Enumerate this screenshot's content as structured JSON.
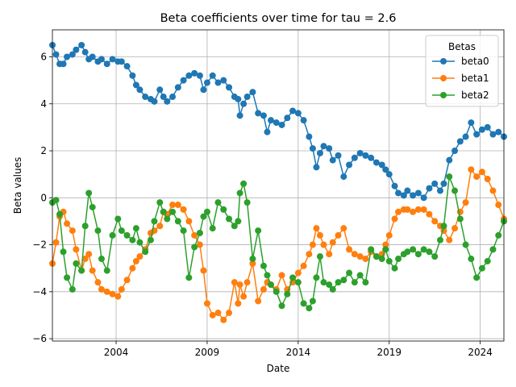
{
  "chart_data": {
    "type": "line",
    "title": "Beta coefficients over time for tau = 2.6",
    "xlabel": "Date",
    "ylabel": "Beta values",
    "xlim": [
      2000.5,
      2025.3
    ],
    "ylim": [
      -6.1,
      7.15
    ],
    "x_ticks": [
      2004,
      2009,
      2014,
      2019,
      2024
    ],
    "y_ticks": [
      -6,
      -4,
      -2,
      0,
      2,
      4,
      6
    ],
    "grid": true,
    "legend": {
      "title": "Betas",
      "position": "top-right"
    },
    "marker": "circle",
    "series": [
      {
        "name": "beta0",
        "color": "#1f77b4",
        "points": [
          [
            2000.5,
            6.5
          ],
          [
            2000.7,
            6.1
          ],
          [
            2000.9,
            5.7
          ],
          [
            2001.1,
            5.7
          ],
          [
            2001.3,
            6.0
          ],
          [
            2001.6,
            6.1
          ],
          [
            2001.8,
            6.3
          ],
          [
            2002.1,
            6.5
          ],
          [
            2002.3,
            6.2
          ],
          [
            2002.5,
            5.9
          ],
          [
            2002.7,
            6.0
          ],
          [
            2003.0,
            5.8
          ],
          [
            2003.2,
            5.9
          ],
          [
            2003.5,
            5.7
          ],
          [
            2003.8,
            5.9
          ],
          [
            2004.1,
            5.8
          ],
          [
            2004.3,
            5.8
          ],
          [
            2004.6,
            5.6
          ],
          [
            2004.9,
            5.2
          ],
          [
            2005.1,
            4.8
          ],
          [
            2005.3,
            4.6
          ],
          [
            2005.6,
            4.3
          ],
          [
            2005.9,
            4.2
          ],
          [
            2006.1,
            4.1
          ],
          [
            2006.4,
            4.6
          ],
          [
            2006.6,
            4.3
          ],
          [
            2006.8,
            4.1
          ],
          [
            2007.1,
            4.3
          ],
          [
            2007.4,
            4.7
          ],
          [
            2007.7,
            5.0
          ],
          [
            2008.0,
            5.2
          ],
          [
            2008.3,
            5.3
          ],
          [
            2008.6,
            5.2
          ],
          [
            2008.8,
            4.6
          ],
          [
            2009.0,
            4.9
          ],
          [
            2009.3,
            5.2
          ],
          [
            2009.6,
            4.9
          ],
          [
            2009.9,
            5.0
          ],
          [
            2010.2,
            4.7
          ],
          [
            2010.5,
            4.3
          ],
          [
            2010.7,
            4.2
          ],
          [
            2010.8,
            3.5
          ],
          [
            2011.0,
            4.0
          ],
          [
            2011.2,
            4.3
          ],
          [
            2011.5,
            4.5
          ],
          [
            2011.8,
            3.6
          ],
          [
            2012.1,
            3.5
          ],
          [
            2012.3,
            2.8
          ],
          [
            2012.5,
            3.3
          ],
          [
            2012.8,
            3.2
          ],
          [
            2013.1,
            3.1
          ],
          [
            2013.4,
            3.4
          ],
          [
            2013.7,
            3.7
          ],
          [
            2014.0,
            3.6
          ],
          [
            2014.3,
            3.3
          ],
          [
            2014.6,
            2.6
          ],
          [
            2014.8,
            2.1
          ],
          [
            2015.0,
            1.3
          ],
          [
            2015.2,
            1.9
          ],
          [
            2015.4,
            2.2
          ],
          [
            2015.7,
            2.1
          ],
          [
            2015.9,
            1.6
          ],
          [
            2016.2,
            1.8
          ],
          [
            2016.5,
            0.9
          ],
          [
            2016.8,
            1.4
          ],
          [
            2017.1,
            1.7
          ],
          [
            2017.4,
            1.9
          ],
          [
            2017.7,
            1.8
          ],
          [
            2018.0,
            1.7
          ],
          [
            2018.3,
            1.5
          ],
          [
            2018.6,
            1.4
          ],
          [
            2018.8,
            1.2
          ],
          [
            2019.0,
            1.0
          ],
          [
            2019.3,
            0.5
          ],
          [
            2019.5,
            0.2
          ],
          [
            2019.8,
            0.1
          ],
          [
            2020.0,
            0.3
          ],
          [
            2020.3,
            0.1
          ],
          [
            2020.6,
            0.2
          ],
          [
            2020.9,
            0.0
          ],
          [
            2021.2,
            0.4
          ],
          [
            2021.5,
            0.6
          ],
          [
            2021.8,
            0.3
          ],
          [
            2022.0,
            0.6
          ],
          [
            2022.3,
            1.6
          ],
          [
            2022.6,
            2.0
          ],
          [
            2022.9,
            2.4
          ],
          [
            2023.2,
            2.6
          ],
          [
            2023.5,
            3.2
          ],
          [
            2023.8,
            2.7
          ],
          [
            2024.1,
            2.9
          ],
          [
            2024.4,
            3.0
          ],
          [
            2024.7,
            2.7
          ],
          [
            2025.0,
            2.8
          ],
          [
            2025.3,
            2.6
          ]
        ]
      },
      {
        "name": "beta1",
        "color": "#ff7f0e",
        "points": [
          [
            2000.5,
            -2.8
          ],
          [
            2000.7,
            -1.9
          ],
          [
            2000.9,
            -0.8
          ],
          [
            2001.1,
            -0.6
          ],
          [
            2001.3,
            -1.1
          ],
          [
            2001.6,
            -1.4
          ],
          [
            2001.8,
            -2.2
          ],
          [
            2002.1,
            -3.1
          ],
          [
            2002.3,
            -2.6
          ],
          [
            2002.5,
            -2.4
          ],
          [
            2002.7,
            -3.1
          ],
          [
            2003.0,
            -3.6
          ],
          [
            2003.2,
            -3.9
          ],
          [
            2003.5,
            -4.0
          ],
          [
            2003.8,
            -4.1
          ],
          [
            2004.1,
            -4.2
          ],
          [
            2004.3,
            -3.9
          ],
          [
            2004.6,
            -3.5
          ],
          [
            2004.9,
            -3.0
          ],
          [
            2005.1,
            -2.7
          ],
          [
            2005.3,
            -2.5
          ],
          [
            2005.6,
            -2.2
          ],
          [
            2005.9,
            -1.5
          ],
          [
            2006.1,
            -1.4
          ],
          [
            2006.4,
            -1.2
          ],
          [
            2006.6,
            -0.6
          ],
          [
            2006.8,
            -0.7
          ],
          [
            2007.1,
            -0.3
          ],
          [
            2007.4,
            -0.3
          ],
          [
            2007.7,
            -0.5
          ],
          [
            2008.0,
            -1.0
          ],
          [
            2008.3,
            -1.6
          ],
          [
            2008.6,
            -2.0
          ],
          [
            2008.8,
            -3.1
          ],
          [
            2009.0,
            -4.5
          ],
          [
            2009.3,
            -5.0
          ],
          [
            2009.6,
            -4.9
          ],
          [
            2009.9,
            -5.2
          ],
          [
            2010.2,
            -4.9
          ],
          [
            2010.5,
            -3.6
          ],
          [
            2010.7,
            -4.5
          ],
          [
            2010.8,
            -3.7
          ],
          [
            2011.0,
            -4.2
          ],
          [
            2011.2,
            -3.6
          ],
          [
            2011.5,
            -2.8
          ],
          [
            2011.8,
            -4.4
          ],
          [
            2012.1,
            -3.9
          ],
          [
            2012.3,
            -3.6
          ],
          [
            2012.5,
            -3.7
          ],
          [
            2012.8,
            -3.9
          ],
          [
            2013.1,
            -3.3
          ],
          [
            2013.4,
            -3.9
          ],
          [
            2013.7,
            -3.6
          ],
          [
            2014.0,
            -3.2
          ],
          [
            2014.3,
            -2.9
          ],
          [
            2014.6,
            -2.4
          ],
          [
            2014.8,
            -2.0
          ],
          [
            2015.0,
            -1.3
          ],
          [
            2015.2,
            -1.6
          ],
          [
            2015.4,
            -2.0
          ],
          [
            2015.7,
            -2.4
          ],
          [
            2015.9,
            -1.9
          ],
          [
            2016.2,
            -1.6
          ],
          [
            2016.5,
            -1.3
          ],
          [
            2016.8,
            -2.2
          ],
          [
            2017.1,
            -2.4
          ],
          [
            2017.4,
            -2.5
          ],
          [
            2017.7,
            -2.6
          ],
          [
            2018.0,
            -2.3
          ],
          [
            2018.3,
            -2.5
          ],
          [
            2018.6,
            -2.4
          ],
          [
            2018.8,
            -2.0
          ],
          [
            2019.0,
            -1.6
          ],
          [
            2019.3,
            -0.9
          ],
          [
            2019.5,
            -0.6
          ],
          [
            2019.8,
            -0.5
          ],
          [
            2020.0,
            -0.5
          ],
          [
            2020.3,
            -0.6
          ],
          [
            2020.6,
            -0.5
          ],
          [
            2020.9,
            -0.5
          ],
          [
            2021.2,
            -0.7
          ],
          [
            2021.5,
            -1.0
          ],
          [
            2021.8,
            -1.2
          ],
          [
            2022.0,
            -1.4
          ],
          [
            2022.3,
            -1.8
          ],
          [
            2022.6,
            -1.3
          ],
          [
            2022.9,
            -0.6
          ],
          [
            2023.2,
            -0.2
          ],
          [
            2023.5,
            1.2
          ],
          [
            2023.8,
            0.9
          ],
          [
            2024.1,
            1.1
          ],
          [
            2024.4,
            0.8
          ],
          [
            2024.7,
            0.3
          ],
          [
            2025.0,
            -0.3
          ],
          [
            2025.3,
            -0.9
          ]
        ]
      },
      {
        "name": "beta2",
        "color": "#2ca02c",
        "points": [
          [
            2000.5,
            -0.2
          ],
          [
            2000.7,
            -0.1
          ],
          [
            2000.9,
            -0.7
          ],
          [
            2001.1,
            -2.3
          ],
          [
            2001.3,
            -3.4
          ],
          [
            2001.6,
            -3.9
          ],
          [
            2001.8,
            -2.8
          ],
          [
            2002.1,
            -3.1
          ],
          [
            2002.3,
            -1.2
          ],
          [
            2002.5,
            0.2
          ],
          [
            2002.7,
            -0.4
          ],
          [
            2003.0,
            -1.4
          ],
          [
            2003.2,
            -2.6
          ],
          [
            2003.5,
            -3.1
          ],
          [
            2003.8,
            -1.6
          ],
          [
            2004.1,
            -0.9
          ],
          [
            2004.3,
            -1.4
          ],
          [
            2004.6,
            -1.6
          ],
          [
            2004.9,
            -1.8
          ],
          [
            2005.1,
            -1.3
          ],
          [
            2005.3,
            -1.9
          ],
          [
            2005.6,
            -2.3
          ],
          [
            2005.9,
            -1.8
          ],
          [
            2006.1,
            -1.0
          ],
          [
            2006.4,
            -0.2
          ],
          [
            2006.6,
            -0.6
          ],
          [
            2006.8,
            -0.9
          ],
          [
            2007.1,
            -0.6
          ],
          [
            2007.4,
            -1.0
          ],
          [
            2007.7,
            -1.4
          ],
          [
            2008.0,
            -3.4
          ],
          [
            2008.3,
            -2.1
          ],
          [
            2008.6,
            -1.5
          ],
          [
            2008.8,
            -0.8
          ],
          [
            2009.0,
            -0.6
          ],
          [
            2009.3,
            -1.3
          ],
          [
            2009.6,
            -0.2
          ],
          [
            2009.9,
            -0.5
          ],
          [
            2010.2,
            -0.9
          ],
          [
            2010.5,
            -1.2
          ],
          [
            2010.7,
            -1.0
          ],
          [
            2010.8,
            0.2
          ],
          [
            2011.0,
            0.6
          ],
          [
            2011.2,
            -0.2
          ],
          [
            2011.5,
            -2.6
          ],
          [
            2011.8,
            -1.4
          ],
          [
            2012.1,
            -2.9
          ],
          [
            2012.3,
            -3.3
          ],
          [
            2012.5,
            -3.7
          ],
          [
            2012.8,
            -4.0
          ],
          [
            2013.1,
            -4.6
          ],
          [
            2013.4,
            -4.1
          ],
          [
            2013.7,
            -3.4
          ],
          [
            2014.0,
            -3.6
          ],
          [
            2014.3,
            -4.5
          ],
          [
            2014.6,
            -4.7
          ],
          [
            2014.8,
            -4.4
          ],
          [
            2015.0,
            -3.4
          ],
          [
            2015.2,
            -2.5
          ],
          [
            2015.4,
            -3.6
          ],
          [
            2015.7,
            -3.7
          ],
          [
            2015.9,
            -3.9
          ],
          [
            2016.2,
            -3.6
          ],
          [
            2016.5,
            -3.5
          ],
          [
            2016.8,
            -3.2
          ],
          [
            2017.1,
            -3.6
          ],
          [
            2017.4,
            -3.3
          ],
          [
            2017.7,
            -3.6
          ],
          [
            2018.0,
            -2.2
          ],
          [
            2018.3,
            -2.5
          ],
          [
            2018.6,
            -2.6
          ],
          [
            2018.8,
            -2.2
          ],
          [
            2019.0,
            -2.7
          ],
          [
            2019.3,
            -3.0
          ],
          [
            2019.5,
            -2.6
          ],
          [
            2019.8,
            -2.4
          ],
          [
            2020.0,
            -2.3
          ],
          [
            2020.3,
            -2.2
          ],
          [
            2020.6,
            -2.4
          ],
          [
            2020.9,
            -2.2
          ],
          [
            2021.2,
            -2.3
          ],
          [
            2021.5,
            -2.5
          ],
          [
            2021.8,
            -1.8
          ],
          [
            2022.0,
            -1.2
          ],
          [
            2022.3,
            0.9
          ],
          [
            2022.6,
            0.3
          ],
          [
            2022.9,
            -0.9
          ],
          [
            2023.2,
            -2.0
          ],
          [
            2023.5,
            -2.6
          ],
          [
            2023.8,
            -3.4
          ],
          [
            2024.1,
            -3.0
          ],
          [
            2024.4,
            -2.7
          ],
          [
            2024.7,
            -2.2
          ],
          [
            2025.0,
            -1.6
          ],
          [
            2025.3,
            -1.0
          ]
        ]
      }
    ]
  }
}
